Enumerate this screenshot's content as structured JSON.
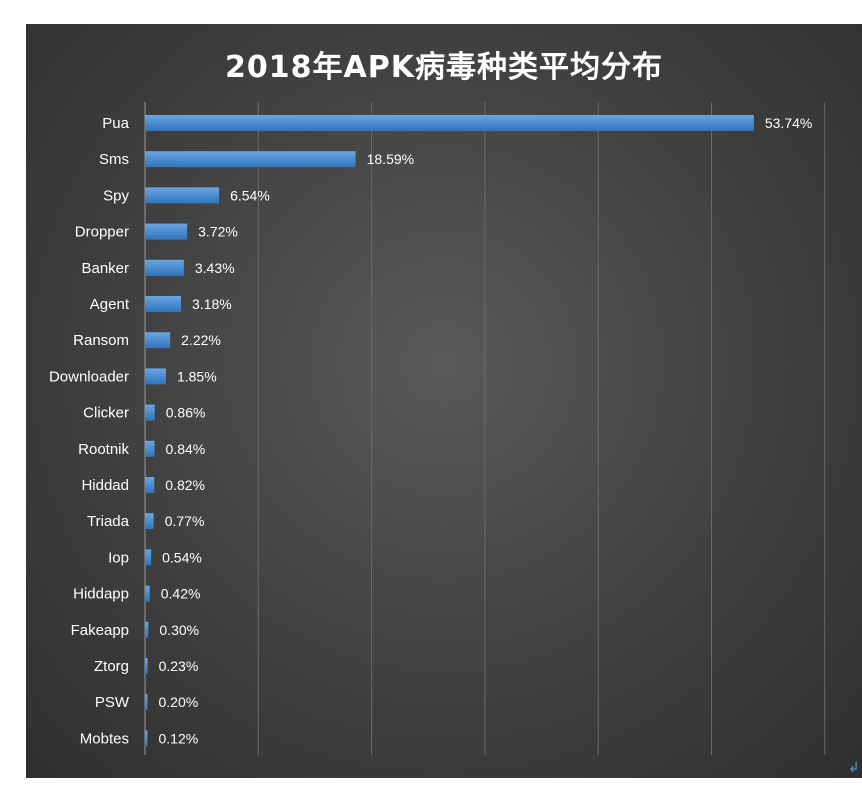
{
  "chart_data": {
    "type": "bar",
    "orientation": "horizontal",
    "title": "2018年APK病毒种类平均分布",
    "categories": [
      "Pua",
      "Sms",
      "Spy",
      "Dropper",
      "Banker",
      "Agent",
      "Ransom",
      "Downloader",
      "Clicker",
      "Rootnik",
      "Hiddad",
      "Triada",
      "Iop",
      "Hiddapp",
      "Fakeapp",
      "Ztorg",
      "PSW",
      "Mobtes"
    ],
    "values": [
      53.74,
      18.59,
      6.54,
      3.72,
      3.43,
      3.18,
      2.22,
      1.85,
      0.86,
      0.84,
      0.82,
      0.77,
      0.54,
      0.42,
      0.3,
      0.23,
      0.2,
      0.12
    ],
    "data_labels": [
      "53.74%",
      "18.59%",
      "6.54%",
      "3.72%",
      "3.43%",
      "3.18%",
      "2.22%",
      "1.85%",
      "0.86%",
      "0.84%",
      "0.82%",
      "0.77%",
      "0.54%",
      "0.42%",
      "0.30%",
      "0.23%",
      "0.20%",
      "0.12%"
    ],
    "xlim": [
      0,
      60
    ],
    "grid": true,
    "bar_color": "#3f86cf",
    "background_color": "#444444",
    "text_color": "#ffffff"
  },
  "return_mark": "↲"
}
